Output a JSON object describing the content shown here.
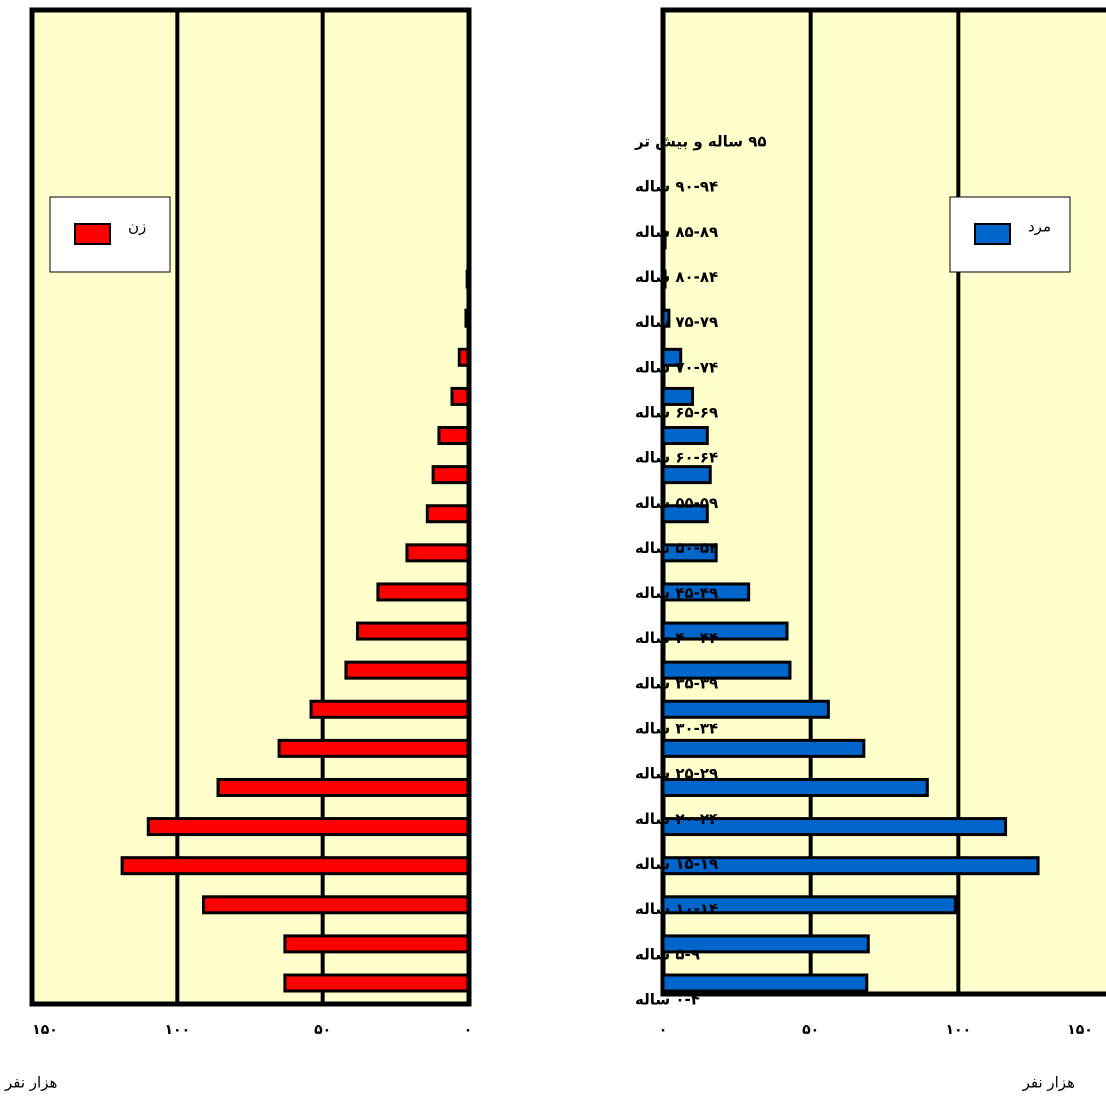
{
  "chart_data": {
    "type": "pyramid",
    "categories": [
      "۹۵ ساله و بیش تر",
      "۹۰-۹۴ ساله",
      "۸۵-۸۹ ساله",
      "۸۰-۸۴ ساله",
      "۷۵-۷۹ ساله",
      "۷۰-۷۴ ساله",
      "۶۵-۶۹ ساله",
      "۶۰-۶۴ ساله",
      "۵۵-۵۹ ساله",
      "۵۰-۵۴ ساله",
      "۴۵-۴۹ ساله",
      "۴۰-۴۴ ساله",
      "۳۵-۳۹ ساله",
      "۳۰-۳۴ ساله",
      "۲۵-۲۹ ساله",
      "۲۰-۲۴ ساله",
      "۱۵-۱۹ ساله",
      "۱۰-۱۴ ساله",
      "۵-۹ ساله",
      "۰-۴ ساله"
    ],
    "series": [
      {
        "name": "زن",
        "color": "#ff0000",
        "side": "left",
        "values": [
          0,
          0.3,
          0.7,
          3,
          5.5,
          10,
          12,
          14,
          21,
          31,
          38,
          42,
          54,
          65,
          86,
          110,
          119,
          91,
          63,
          63
        ]
      },
      {
        "name": "مرد",
        "color": "#0066cc",
        "side": "right",
        "values": [
          0.7,
          0.7,
          2,
          6,
          10,
          15,
          16,
          15,
          18,
          29,
          42,
          43,
          56,
          68,
          89.5,
          116,
          127,
          99,
          69.5,
          69
        ]
      }
    ],
    "xlim": [
      0,
      150
    ],
    "xticks": [
      {
        "value": 0,
        "label": "۰"
      },
      {
        "value": 50,
        "label": "۵۰"
      },
      {
        "value": 100,
        "label": "۱۰۰"
      },
      {
        "value": 150,
        "label": "۱۵۰"
      }
    ],
    "xlabel": "هزار نفر",
    "grid": true
  }
}
